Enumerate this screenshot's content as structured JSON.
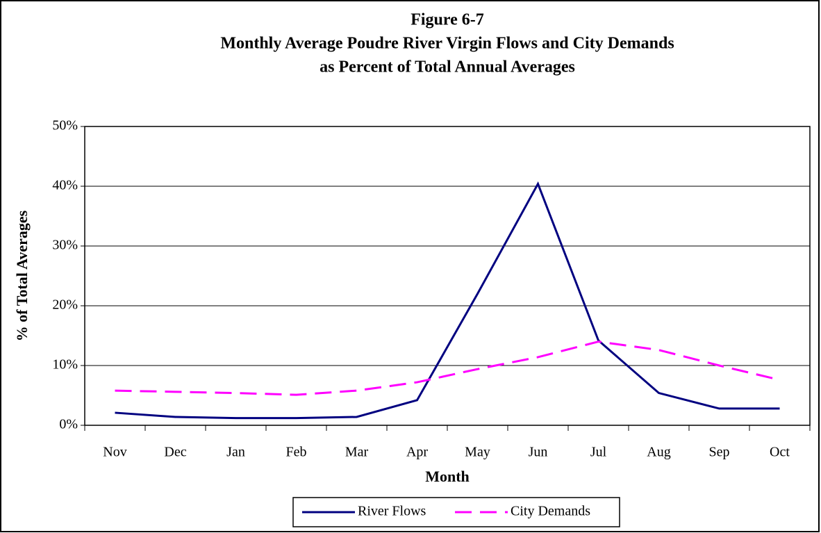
{
  "chart_data": {
    "type": "line",
    "title": [
      "Figure 6-7",
      "Monthly Average Poudre River Virgin Flows and City Demands",
      "as Percent of Total Annual Averages"
    ],
    "x_label": "Month",
    "y_label": "% of Total Averages",
    "categories": [
      "Nov",
      "Dec",
      "Jan",
      "Feb",
      "Mar",
      "Apr",
      "May",
      "Jun",
      "Jul",
      "Aug",
      "Sep",
      "Oct"
    ],
    "series": [
      {
        "name": "River Flows",
        "color": "#000080",
        "dash": false,
        "values": [
          2.1,
          1.4,
          1.2,
          1.2,
          1.4,
          4.2,
          22.0,
          40.4,
          14.2,
          5.4,
          2.8,
          2.8
        ]
      },
      {
        "name": "City Demands",
        "color": "#ff00ff",
        "dash": true,
        "values": [
          5.8,
          5.6,
          5.4,
          5.1,
          5.8,
          7.2,
          9.4,
          11.4,
          14.0,
          12.6,
          10.0,
          7.6
        ]
      }
    ],
    "ylim": [
      0,
      50
    ],
    "yticks": [
      {
        "value": 0,
        "label": "0%"
      },
      {
        "value": 10,
        "label": "10%"
      },
      {
        "value": 20,
        "label": "20%"
      },
      {
        "value": 30,
        "label": "30%"
      },
      {
        "value": 40,
        "label": "40%"
      },
      {
        "value": 50,
        "label": "50%"
      }
    ],
    "grid": true,
    "legend": "bottom"
  }
}
